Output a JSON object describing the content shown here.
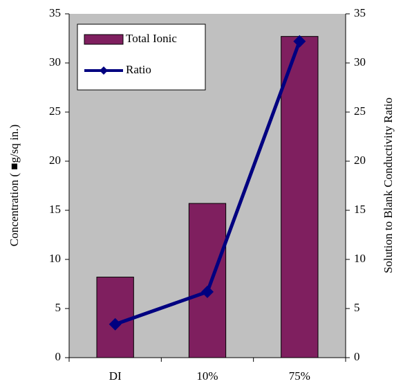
{
  "chart_data": {
    "type": "bar",
    "categories": [
      "DI",
      "10%",
      "75%"
    ],
    "y_label": "Concentration ( ■g/sq in.)",
    "y2_label": "Solution to Blank Conductivity Ratio",
    "series": [
      {
        "name": "Total Ionic",
        "type": "bar",
        "color": "#7f1f5f",
        "values": [
          8.2,
          15.7,
          32.7
        ]
      },
      {
        "name": "Ratio",
        "type": "line",
        "axis": "y2",
        "color": "#000080",
        "values": [
          3.4,
          6.7,
          32.2
        ]
      }
    ],
    "ylim": [
      0,
      35
    ],
    "yticks": [
      0,
      5,
      10,
      15,
      20,
      25,
      30,
      35
    ],
    "y2lim": [
      0,
      35
    ],
    "y2ticks": [
      0,
      5,
      10,
      15,
      20,
      25,
      30,
      35
    ],
    "plot_background": "#c0c0c0",
    "legend": "upper-left"
  }
}
